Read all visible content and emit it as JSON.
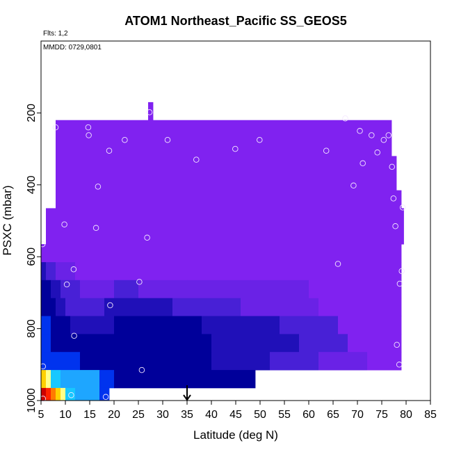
{
  "chart_data": {
    "type": "heatmap",
    "title": "ATOM1 Northeast_Pacific SS_GEOS5",
    "annotations": {
      "flights": "Flts: 1,2",
      "dates": "MMDD: 0729,0801"
    },
    "xlabel": "Latitude (deg N)",
    "ylabel": "PSXC (mbar)",
    "xlim": [
      5,
      85
    ],
    "ylim": [
      1000,
      0
    ],
    "x_ticks": [
      "5",
      "10",
      "15",
      "20",
      "25",
      "30",
      "35",
      "40",
      "45",
      "50",
      "55",
      "60",
      "65",
      "70",
      "75",
      "80",
      "85"
    ],
    "y_ticks": [
      "200",
      "400",
      "600",
      "800",
      "1000"
    ],
    "arrow_latitude": 35,
    "colors": {
      "purple": "#8022f0",
      "violet": "#6a22e6",
      "indigo": "#4820d6",
      "darkblue": "#2010b8",
      "navy": "#00009a",
      "blue": "#0033ee",
      "skyblue": "#1ea6ff",
      "cyan": "#18c8ff",
      "paleyellow": "#ffff88",
      "yellow": "#ffd000",
      "orange": "#ff7a00",
      "red": "#ff2200",
      "darkred": "#cc0000"
    },
    "bands": [
      {
        "p": [
          170,
          220
        ],
        "segments": [
          [
            27,
            28,
            "purple"
          ]
        ]
      },
      {
        "p": [
          220,
          465
        ],
        "segments": [
          [
            8,
            77,
            "purple"
          ]
        ]
      },
      {
        "p": [
          320,
          465
        ],
        "segments": [
          [
            77,
            78,
            "purple"
          ]
        ]
      },
      {
        "p": [
          415,
          465
        ],
        "segments": [
          [
            78,
            79,
            "purple"
          ]
        ]
      },
      {
        "p": [
          465,
          565
        ],
        "segments": [
          [
            6,
            79.5,
            "purple"
          ]
        ]
      },
      {
        "p": [
          565,
          615
        ],
        "segments": [
          [
            5,
            79,
            "purple"
          ]
        ]
      },
      {
        "p": [
          615,
          665
        ],
        "segments": [
          [
            5,
            6,
            "darkblue"
          ],
          [
            6,
            8,
            "indigo"
          ],
          [
            8,
            12,
            "violet"
          ],
          [
            12,
            79,
            "purple"
          ]
        ]
      },
      {
        "p": [
          665,
          715
        ],
        "segments": [
          [
            5,
            7,
            "navy"
          ],
          [
            7,
            9,
            "darkblue"
          ],
          [
            9,
            13,
            "indigo"
          ],
          [
            13,
            20,
            "violet"
          ],
          [
            20,
            25,
            "indigo"
          ],
          [
            25,
            35,
            "violet"
          ],
          [
            35,
            48,
            "violet"
          ],
          [
            48,
            60,
            "violet"
          ],
          [
            60,
            79,
            "purple"
          ]
        ]
      },
      {
        "p": [
          715,
          765
        ],
        "segments": [
          [
            5,
            8,
            "navy"
          ],
          [
            8,
            10,
            "darkblue"
          ],
          [
            10,
            18,
            "indigo"
          ],
          [
            18,
            32,
            "darkblue"
          ],
          [
            32,
            46,
            "indigo"
          ],
          [
            46,
            62,
            "violet"
          ],
          [
            62,
            79,
            "purple"
          ]
        ]
      },
      {
        "p": [
          765,
          815
        ],
        "segments": [
          [
            5,
            7,
            "blue"
          ],
          [
            7,
            11,
            "navy"
          ],
          [
            11,
            20,
            "darkblue"
          ],
          [
            20,
            38,
            "navy"
          ],
          [
            38,
            54,
            "darkblue"
          ],
          [
            54,
            66,
            "indigo"
          ],
          [
            66,
            79,
            "purple"
          ]
        ]
      },
      {
        "p": [
          815,
          865
        ],
        "segments": [
          [
            5,
            7,
            "blue"
          ],
          [
            7,
            10,
            "navy"
          ],
          [
            10,
            27,
            "navy"
          ],
          [
            27,
            40,
            "navy"
          ],
          [
            40,
            58,
            "darkblue"
          ],
          [
            58,
            68,
            "indigo"
          ],
          [
            68,
            79,
            "purple"
          ]
        ]
      },
      {
        "p": [
          865,
          915
        ],
        "segments": [
          [
            5,
            9,
            "blue"
          ],
          [
            9,
            13,
            "blue"
          ],
          [
            13,
            40,
            "navy"
          ],
          [
            40,
            52,
            "darkblue"
          ],
          [
            52,
            62,
            "indigo"
          ],
          [
            62,
            72,
            "violet"
          ],
          [
            72,
            79,
            "purple"
          ]
        ]
      },
      {
        "p": [
          915,
          965
        ],
        "segments": [
          [
            5,
            6,
            "yellow"
          ],
          [
            6,
            7,
            "paleyellow"
          ],
          [
            7,
            9,
            "cyan"
          ],
          [
            9,
            11,
            "skyblue"
          ],
          [
            11,
            17,
            "skyblue"
          ],
          [
            17,
            20,
            "blue"
          ],
          [
            20,
            49,
            "navy"
          ]
        ]
      },
      {
        "p": [
          965,
          1010
        ],
        "segments": [
          [
            5,
            6,
            "darkred"
          ],
          [
            6,
            7,
            "red"
          ],
          [
            7,
            8,
            "orange"
          ],
          [
            8,
            9,
            "yellow"
          ],
          [
            9,
            10,
            "paleyellow"
          ],
          [
            10,
            12,
            "cyan"
          ],
          [
            12,
            17,
            "skyblue"
          ],
          [
            17,
            19,
            "blue"
          ]
        ]
      }
    ],
    "observations": [
      [
        5.3,
        565
      ],
      [
        5.4,
        905
      ],
      [
        5.4,
        995
      ],
      [
        8.0,
        240
      ],
      [
        9.8,
        510
      ],
      [
        10.3,
        677
      ],
      [
        11.2,
        985
      ],
      [
        11.7,
        635
      ],
      [
        11.8,
        820
      ],
      [
        14.7,
        240
      ],
      [
        14.8,
        262
      ],
      [
        16.7,
        405
      ],
      [
        16.3,
        520
      ],
      [
        18.3,
        990
      ],
      [
        19.0,
        305
      ],
      [
        19.2,
        735
      ],
      [
        22.2,
        275
      ],
      [
        25.2,
        670
      ],
      [
        25.7,
        915
      ],
      [
        26.8,
        547
      ],
      [
        27.3,
        198
      ],
      [
        31.0,
        275
      ],
      [
        36.9,
        330
      ],
      [
        44.9,
        300
      ],
      [
        49.9,
        275
      ],
      [
        63.6,
        305
      ],
      [
        66.0,
        620
      ],
      [
        67.5,
        215
      ],
      [
        69.2,
        402
      ],
      [
        70.5,
        250
      ],
      [
        71.1,
        340
      ],
      [
        72.9,
        262
      ],
      [
        74.1,
        310
      ],
      [
        75.4,
        275
      ],
      [
        76.4,
        262
      ],
      [
        77.1,
        350
      ],
      [
        77.4,
        438
      ],
      [
        77.8,
        515
      ],
      [
        78.1,
        845
      ],
      [
        78.6,
        900
      ],
      [
        78.7,
        675
      ],
      [
        79.1,
        640
      ],
      [
        79.3,
        463
      ]
    ]
  }
}
